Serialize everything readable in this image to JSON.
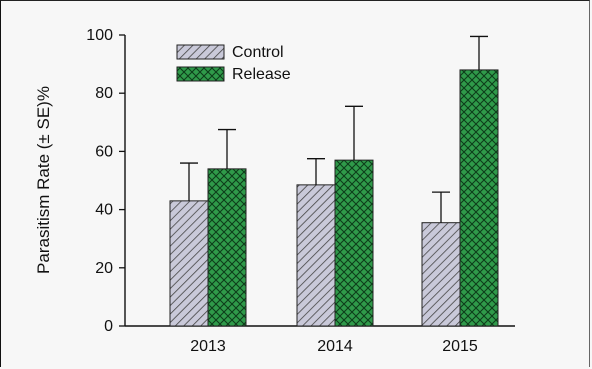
{
  "chart_data": {
    "type": "bar",
    "categories": [
      "2013",
      "2014",
      "2015"
    ],
    "series": [
      {
        "name": "Control",
        "values": [
          43,
          48.5,
          35.5
        ],
        "se": [
          13,
          9,
          10.5
        ],
        "color": "#c9c9d9",
        "pattern": "diagonal-hatch"
      },
      {
        "name": "Release",
        "values": [
          54,
          57,
          88
        ],
        "se": [
          13.5,
          18.5,
          11.5
        ],
        "color": "#2f9a4a",
        "pattern": "crosshatch"
      }
    ],
    "ylabel": "Parasitism Rate (± SE)%",
    "xlabel": "",
    "ylim": [
      0,
      100
    ],
    "yticks": [
      0,
      20,
      40,
      60,
      80,
      100
    ],
    "grid": false,
    "legend_position": "top-left"
  }
}
